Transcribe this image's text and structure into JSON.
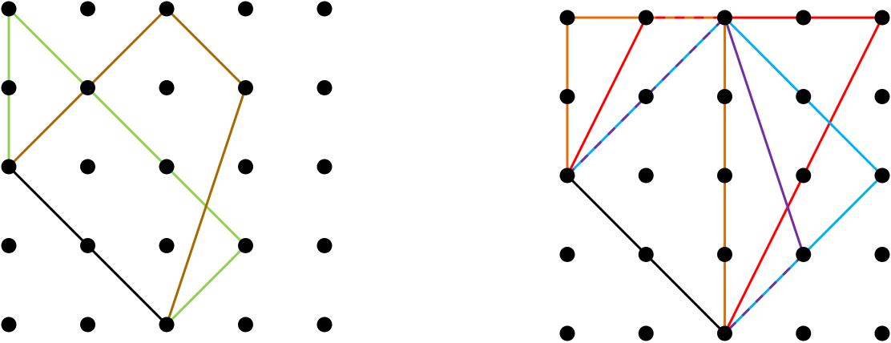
{
  "colors": {
    "dot": "#000000",
    "black": "#000000",
    "green": "#92d050",
    "brown": "#a66a00",
    "orange": "#e46c0a",
    "red": "#ff0000",
    "cyan": "#00b0f0",
    "purple": "#7030a0"
  },
  "diagrams": [
    {
      "name": "left-dot-grid",
      "grid": {
        "cols": 5,
        "rows": 5
      },
      "segments": [
        {
          "from": [
            0,
            0
          ],
          "to": [
            0,
            2
          ],
          "color": "green"
        },
        {
          "from": [
            0,
            0
          ],
          "to": [
            3,
            3
          ],
          "color": "green"
        },
        {
          "from": [
            3,
            3
          ],
          "to": [
            2,
            4
          ],
          "color": "green"
        },
        {
          "from": [
            0,
            2
          ],
          "to": [
            2,
            0
          ],
          "color": "brown"
        },
        {
          "from": [
            2,
            0
          ],
          "to": [
            3,
            1
          ],
          "color": "brown"
        },
        {
          "from": [
            3,
            1
          ],
          "to": [
            2,
            4
          ],
          "color": "brown"
        },
        {
          "from": [
            0,
            2
          ],
          "to": [
            2,
            4
          ],
          "color": "black"
        }
      ]
    },
    {
      "name": "right-dot-grid",
      "grid": {
        "cols": 5,
        "rows": 5
      },
      "segments": [
        {
          "from": [
            0,
            0
          ],
          "to": [
            1,
            0
          ],
          "color": "orange"
        },
        {
          "from": [
            1,
            0
          ],
          "to": [
            2,
            0
          ],
          "color": "red",
          "dash": "orange"
        },
        {
          "from": [
            2,
            0
          ],
          "to": [
            4,
            0
          ],
          "color": "red"
        },
        {
          "from": [
            0,
            0
          ],
          "to": [
            0,
            2
          ],
          "color": "orange"
        },
        {
          "from": [
            2,
            0
          ],
          "to": [
            2,
            4
          ],
          "color": "orange"
        },
        {
          "from": [
            0,
            2
          ],
          "to": [
            1,
            0
          ],
          "color": "red"
        },
        {
          "from": [
            4,
            0
          ],
          "to": [
            2,
            4
          ],
          "color": "red"
        },
        {
          "from": [
            0,
            2
          ],
          "to": [
            2,
            0
          ],
          "color": "cyan",
          "dash": "purple"
        },
        {
          "from": [
            2,
            0
          ],
          "to": [
            4,
            2
          ],
          "color": "cyan"
        },
        {
          "from": [
            4,
            2
          ],
          "to": [
            3,
            3
          ],
          "color": "cyan"
        },
        {
          "from": [
            3,
            3
          ],
          "to": [
            2,
            4
          ],
          "color": "cyan",
          "dash": "purple"
        },
        {
          "from": [
            2,
            0
          ],
          "to": [
            3,
            3
          ],
          "color": "purple"
        },
        {
          "from": [
            0,
            2
          ],
          "to": [
            2,
            4
          ],
          "color": "black"
        }
      ]
    }
  ]
}
